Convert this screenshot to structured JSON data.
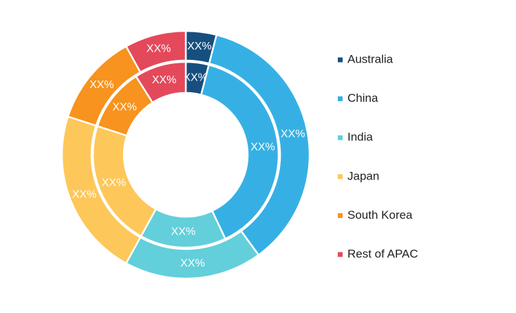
{
  "chart_data": {
    "type": "donut",
    "categories": [
      "Australia",
      "China",
      "India",
      "Japan",
      "South Korea",
      "Rest of APAC"
    ],
    "colors": [
      "#164f7f",
      "#36b0e4",
      "#63cfdb",
      "#fdc75a",
      "#f7931e",
      "#e4495b"
    ],
    "series": [
      {
        "values": [
          4,
          36,
          18,
          22,
          12,
          8
        ],
        "value_labels": [
          "XX%",
          "XX%",
          "XX%",
          "XX%",
          "XX%",
          "XX%"
        ]
      },
      {
        "values": [
          4,
          39,
          15,
          22,
          11,
          9
        ],
        "value_labels": [
          "XX%",
          "XX%",
          "XX%",
          "XX%",
          "XX%",
          "XX%"
        ]
      }
    ],
    "legend": "right"
  }
}
